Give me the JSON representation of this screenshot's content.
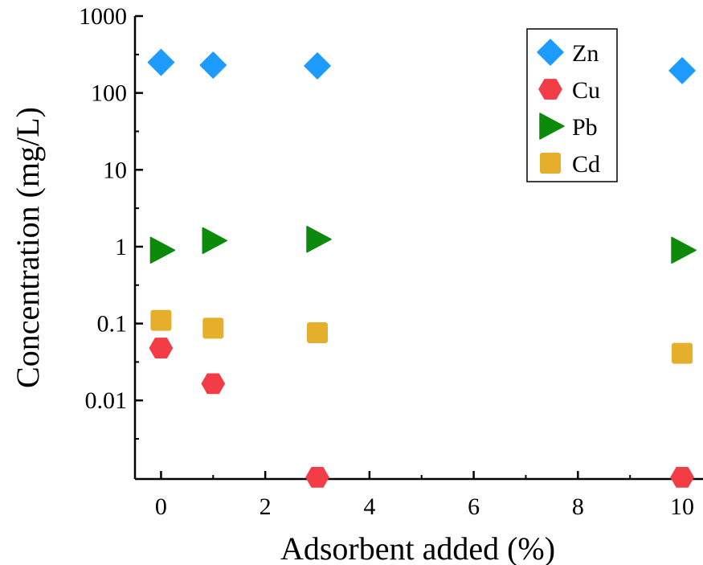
{
  "chart_data": {
    "type": "scatter",
    "xlabel": "Adsorbent added (%)",
    "ylabel": "Concentration (mg/L)",
    "xlim": [
      -0.5,
      10.4
    ],
    "ylim": [
      0.00095,
      1000
    ],
    "y_scale": "log",
    "x_ticks": [
      0,
      2,
      4,
      6,
      8,
      10
    ],
    "x_tick_labels": [
      "0",
      "2",
      "4",
      "6",
      "8",
      "10"
    ],
    "y_ticks": [
      0.01,
      0.1,
      1,
      10,
      100,
      1000
    ],
    "y_tick_labels": [
      "0.01",
      "0.1",
      "1",
      "10",
      "100",
      "1000"
    ],
    "grid": false,
    "legend_position": "top-right",
    "series": [
      {
        "name": "Zn",
        "marker": "diamond",
        "color": "#1E9BFF",
        "x": [
          0,
          1,
          3,
          10
        ],
        "y": [
          250,
          230,
          225,
          195
        ]
      },
      {
        "name": "Cu",
        "marker": "hexagon",
        "color": "#F23C46",
        "x": [
          0,
          1,
          3,
          10
        ],
        "y": [
          0.048,
          0.0165,
          0.001,
          0.001
        ]
      },
      {
        "name": "Pb",
        "marker": "triangle-right",
        "color": "#0C8A0C",
        "x": [
          0,
          1,
          3,
          10
        ],
        "y": [
          0.9,
          1.2,
          1.25,
          0.9
        ]
      },
      {
        "name": "Cd",
        "marker": "square",
        "color": "#E5AE2B",
        "x": [
          0,
          1,
          3,
          10
        ],
        "y": [
          0.11,
          0.087,
          0.076,
          0.041
        ]
      }
    ]
  }
}
